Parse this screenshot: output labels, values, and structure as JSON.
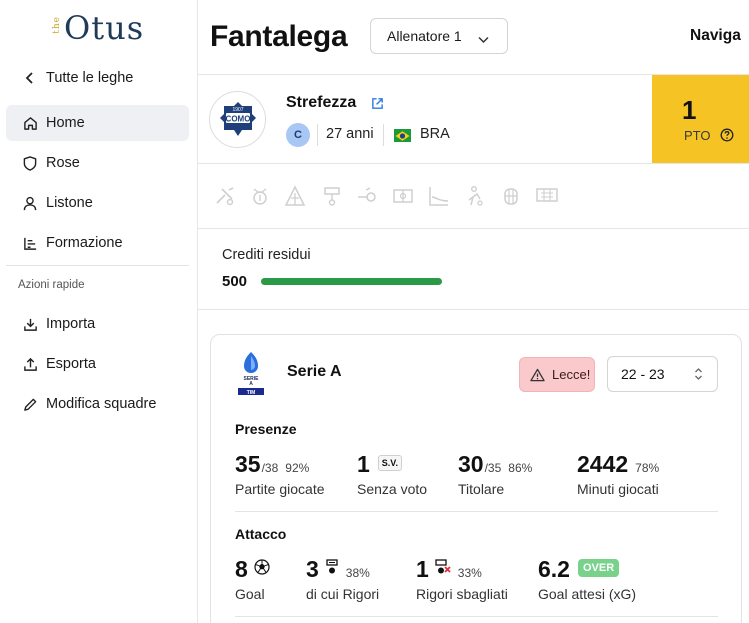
{
  "brand": {
    "prefix": "the",
    "name": "Otus"
  },
  "sidebar": {
    "back_label": "Tutte le leghe",
    "items": [
      {
        "label": "Home",
        "icon": "home-icon",
        "active": true
      },
      {
        "label": "Rose",
        "icon": "shield-icon",
        "active": false
      },
      {
        "label": "Listone",
        "icon": "user-icon",
        "active": false
      },
      {
        "label": "Formazione",
        "icon": "formation-icon",
        "active": false
      }
    ],
    "quick_actions_label": "Azioni rapide",
    "quick_actions": [
      {
        "label": "Importa",
        "icon": "download-icon"
      },
      {
        "label": "Esporta",
        "icon": "upload-icon"
      },
      {
        "label": "Modifica squadre",
        "icon": "pencil-icon"
      }
    ]
  },
  "header": {
    "title": "Fantalega",
    "coach_select": "Allenatore 1",
    "nav_label": "Naviga"
  },
  "player": {
    "club_logo_text": "COMO",
    "club_logo_year": "1907",
    "name": "Strefezza",
    "role": "C",
    "age": "27 anni",
    "nationality": "BRA",
    "points": "1",
    "points_label": "PTO"
  },
  "icon_strip": [
    "dribble-icon",
    "ball-icon",
    "pitch-icon",
    "penalty-icon",
    "assist-icon",
    "field-icon",
    "trend-icon",
    "player-icon",
    "goal-icon",
    "net-icon"
  ],
  "credits": {
    "label": "Crediti residui",
    "value": "500",
    "fill_fraction": 1.0,
    "bar_color": "#2a9a47"
  },
  "stats_card": {
    "league": "Serie A",
    "team_badge": "Lecce!",
    "season": "22 - 23",
    "presenze": {
      "title": "Presenze",
      "items": [
        {
          "value": "35",
          "total": "/38",
          "pct": "92%",
          "label": "Partite giocate"
        },
        {
          "value": "1",
          "tag": "S.V.",
          "label": "Senza voto"
        },
        {
          "value": "30",
          "total": "/35",
          "pct": "86%",
          "label": "Titolare"
        },
        {
          "value": "2442",
          "pct": "78%",
          "label": "Minuti giocati"
        }
      ]
    },
    "attacco": {
      "title": "Attacco",
      "items": [
        {
          "value": "8",
          "icon": "soccer-ball-icon",
          "label": "Goal"
        },
        {
          "value": "3",
          "icon": "penalty-icon",
          "pct": "38%",
          "label": "di cui Rigori"
        },
        {
          "value": "1",
          "icon": "missed-penalty-icon",
          "pct": "33%",
          "label": "Rigori sbagliati"
        },
        {
          "value": "6.2",
          "tag": "OVER",
          "label": "Goal attesi (xG)"
        }
      ]
    }
  },
  "colors": {
    "points_bg": "#f6c324",
    "role_badge": "#a8c7f5",
    "team_badge_bg": "#f9c9cb",
    "over_tag": "#79d28c",
    "active_nav": "#eef0f3"
  }
}
